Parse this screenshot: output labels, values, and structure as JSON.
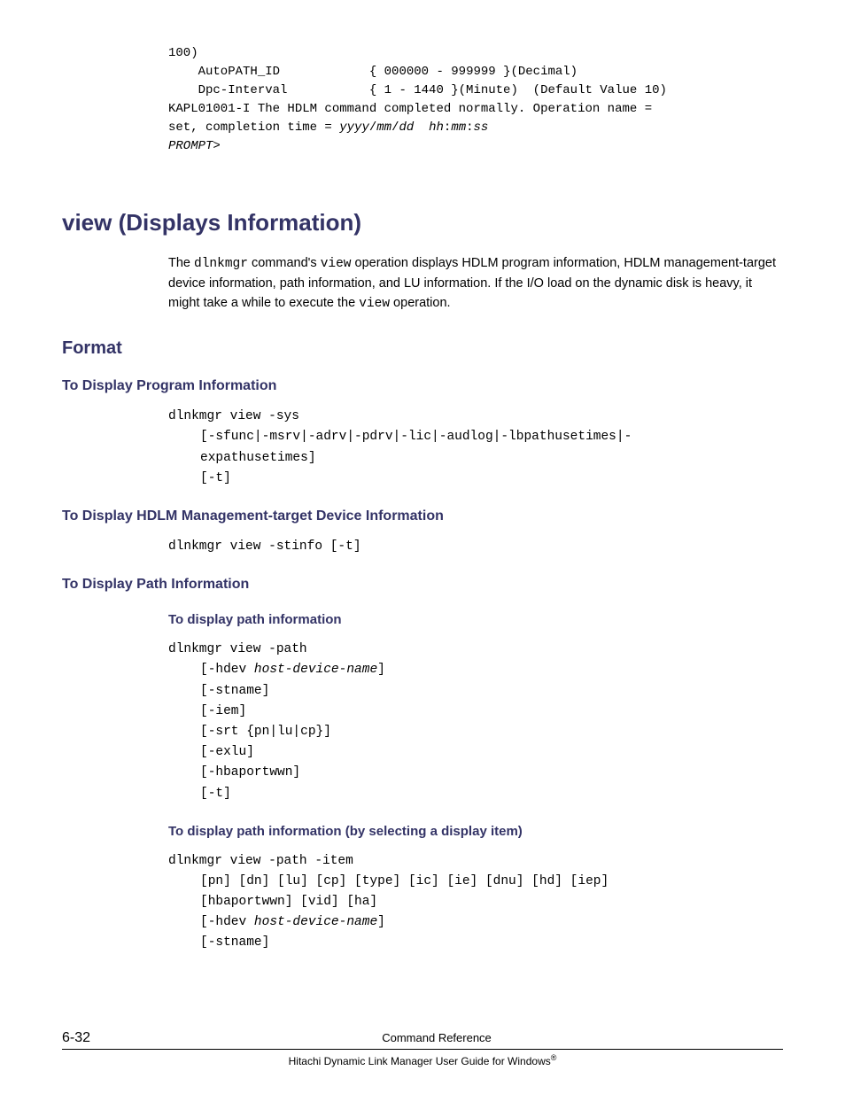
{
  "top_code": {
    "line1": "100)",
    "line2a": "    AutoPATH_ID",
    "line2b": "            { 000000 - 999999 }(Decimal)",
    "line3a": "    Dpc-Interval",
    "line3b": "           { 1 - 1440 }(Minute)  (Default Value 10)",
    "line4": "KAPL01001-I The HDLM command completed normally. Operation name = ",
    "line5a": "set, completion time = ",
    "line5b": "yyyy",
    "line5c": "/",
    "line5d": "mm",
    "line5e": "/",
    "line5f": "dd",
    "line5g": "  ",
    "line5h": "hh",
    "line5i": ":",
    "line5j": "mm",
    "line5k": ":",
    "line5l": "ss",
    "line6": "PROMPT",
    "line6b": ">"
  },
  "h1": "view (Displays Information)",
  "intro": {
    "part1": "The ",
    "code1": "dlnkmgr",
    "part2": " command's ",
    "code2": "view",
    "part3": " operation displays HDLM program information, HDLM management-target device information, path information, and LU information. If the I/O load on the dynamic disk is heavy, it might take a while to execute the ",
    "code3": "view",
    "part4": " operation."
  },
  "h2_format": "Format",
  "h3_program": "To Display Program Information",
  "code_program": {
    "line1": "dlnkmgr view -sys",
    "line2": "[-sfunc|-msrv|-adrv|-pdrv|-lic|-audlog|-lbpathusetimes|-",
    "line3": "expathusetimes]",
    "line4": "[-t]"
  },
  "h3_mgmt": "To Display HDLM Management-target Device Information",
  "code_mgmt": "dlnkmgr view -stinfo [-t]",
  "h3_path": "To Display Path Information",
  "h4_path1": "To display path information",
  "code_path1": {
    "line1": "dlnkmgr view -path",
    "line2a": "[-hdev ",
    "line2b": "host-device-name",
    "line2c": "]",
    "line3": "[-stname]",
    "line4": "[-iem]",
    "line5": "[-srt {pn|lu|cp}]",
    "line6": "[-exlu]",
    "line7": "[-hbaportwwn]",
    "line8": "[-t]"
  },
  "h4_path2": "To display path information (by selecting a display item)",
  "code_path2": {
    "line1": "dlnkmgr view -path -item",
    "line2": "[pn] [dn] [lu] [cp] [type] [ic] [ie] [dnu] [hd] [iep]",
    "line3": "[hbaportwwn] [vid] [ha]",
    "line4a": "[-hdev ",
    "line4b": "host-device-name",
    "line4c": "]",
    "line5": "[-stname]"
  },
  "footer": {
    "page": "6-32",
    "center": "Command Reference",
    "bottom": "Hitachi Dynamic Link Manager User Guide for Windows"
  }
}
